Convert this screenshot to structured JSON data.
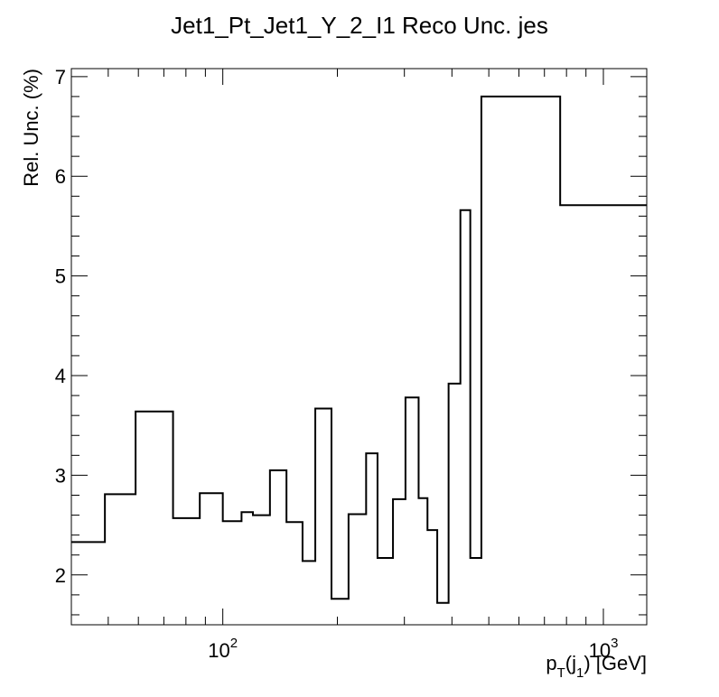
{
  "chart_data": {
    "type": "step-histogram",
    "title": "Jet1_Pt_Jet1_Y_2_I1 Reco Unc. jes",
    "ylabel": "Rel. Unc. (%)",
    "xlabel": {
      "p": "p",
      "T": "T",
      "open": "(j",
      "sub1": "1",
      "close": ") [GeV]"
    },
    "xscale": "log",
    "xlim": [
      40,
      1300
    ],
    "ylim": [
      1.5,
      7.08
    ],
    "yticks": [
      {
        "value": 2,
        "label": "2"
      },
      {
        "value": 3,
        "label": "3"
      },
      {
        "value": 4,
        "label": "4"
      },
      {
        "value": 5,
        "label": "5"
      },
      {
        "value": 6,
        "label": "6"
      },
      {
        "value": 7,
        "label": "7"
      }
    ],
    "xtick_labels": [
      {
        "value": 100,
        "base": "10",
        "exp": "2"
      },
      {
        "value": 1000,
        "base": "10",
        "exp": "3"
      }
    ],
    "bin_edges": [
      40,
      49,
      59,
      74,
      87,
      100,
      112,
      120,
      133,
      147,
      162,
      175,
      193,
      214,
      238,
      255,
      280,
      302,
      327,
      345,
      366,
      392,
      421,
      447,
      478,
      517,
      551,
      583,
      770,
      1000,
      1300
    ],
    "values": [
      2.33,
      2.81,
      3.64,
      2.57,
      2.82,
      2.54,
      2.63,
      2.6,
      3.05,
      2.53,
      2.14,
      3.67,
      1.76,
      2.61,
      3.22,
      2.17,
      2.76,
      3.78,
      2.77,
      2.45,
      1.72,
      3.92,
      5.66,
      2.17,
      6.8,
      6.8,
      6.8,
      6.8,
      5.71,
      5.71
    ]
  }
}
